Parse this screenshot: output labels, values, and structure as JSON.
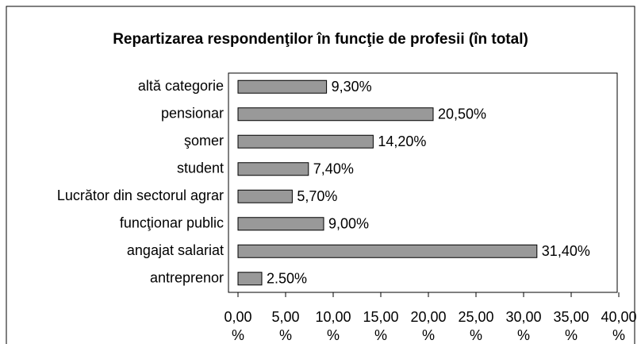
{
  "chart_data": {
    "type": "hbar",
    "title": "Repartizarea respondenţilor în funcţie de profesii (în total)",
    "categories": [
      "altă categorie",
      "pensionar",
      "şomer",
      "student",
      "Lucrător din sectorul agrar",
      "funcţionar public",
      "angajat salariat",
      "antreprenor"
    ],
    "values": [
      9.3,
      20.5,
      14.2,
      7.4,
      5.7,
      9.0,
      31.4,
      2.5
    ],
    "value_labels": [
      "9,30%",
      "20,50%",
      "14,20%",
      "7,40%",
      "5,70%",
      "9,00%",
      "31,40%",
      "2.50%"
    ],
    "color": "#999999",
    "xlim": [
      0,
      40
    ],
    "xticks": [
      {
        "value": 0,
        "label": "0,00 %"
      },
      {
        "value": 5,
        "label": "5,00 %"
      },
      {
        "value": 10,
        "label": "10,00 %"
      },
      {
        "value": 15,
        "label": "15,00 %"
      },
      {
        "value": 20,
        "label": "20,00 %"
      },
      {
        "value": 25,
        "label": "25,00 %"
      },
      {
        "value": 30,
        "label": "30,00 %"
      },
      {
        "value": 35,
        "label": "35,00 %"
      },
      {
        "value": 40,
        "label": "40,00 %"
      }
    ]
  }
}
